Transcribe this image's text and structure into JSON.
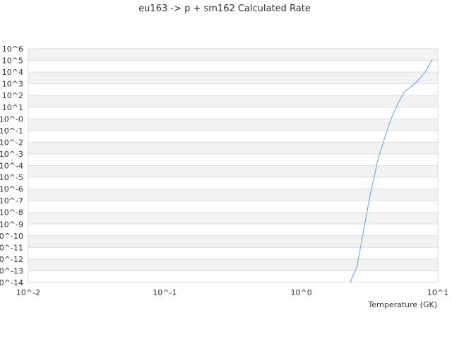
{
  "chart_data": {
    "type": "line",
    "title": "eu163 -> p + sm162 Calculated Rate",
    "xlabel": "Temperature (GK)",
    "ylabel": "",
    "x_scale": "log",
    "y_scale": "log",
    "xlim": [
      0.01,
      10
    ],
    "ylim": [
      1e-14,
      1000000.0
    ],
    "x_ticks": [
      "10^-2",
      "10^-1",
      "10^0",
      "10^1"
    ],
    "y_ticks": [
      "10^6",
      "10^5",
      "10^4",
      "10^3",
      "10^2",
      "10^1",
      "10^-0",
      "10^-1",
      "10^-2",
      "10^-3",
      "10^-4",
      "10^-5",
      "10^-6",
      "10^-7",
      "10^-8",
      "10^-9",
      "10^-10",
      "10^-11",
      "10^-12",
      "10^-13",
      "10^-14"
    ],
    "grid": "horizontal alternating bands",
    "line_color": "#5aa2f0",
    "series": [
      {
        "x": [
          2.28,
          2.56,
          3.16,
          3.63,
          4.0,
          4.5,
          5.06,
          5.6,
          7.1,
          8.0,
          9.06
        ],
        "y": [
          1e-14,
          2.5e-13,
          1.8e-07,
          0.0003,
          0.012,
          0.8,
          17,
          160,
          1700,
          9000,
          110000.0
        ]
      }
    ]
  }
}
